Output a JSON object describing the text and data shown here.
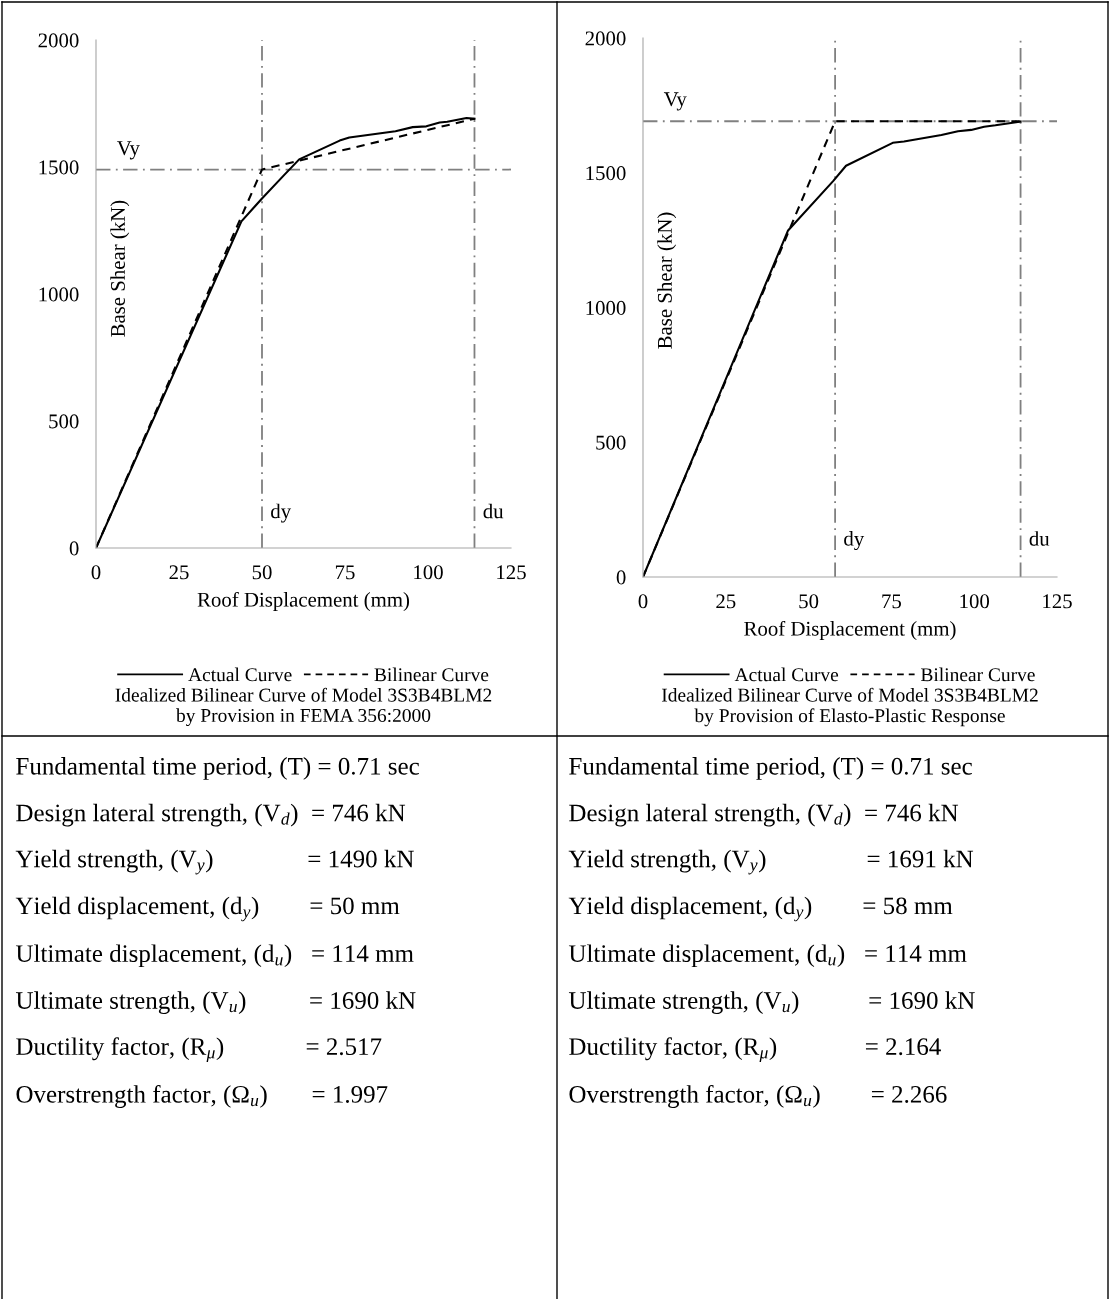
{
  "chart_data": [
    {
      "type": "line",
      "xlabel": "Roof Displacement (mm)",
      "ylabel": "Base Shear (kN)",
      "xlim": [
        0,
        125
      ],
      "ylim": [
        0,
        2000
      ],
      "xticks": [
        0,
        25,
        50,
        75,
        100,
        125
      ],
      "yticks": [
        0,
        500,
        1000,
        1500,
        2000
      ],
      "grid": false,
      "legend": "bottom",
      "series": [
        {
          "name": "Actual Curve",
          "color": "#000000",
          "line_style": "solid",
          "x": [
            0,
            43.8,
            50,
            56.5,
            61.2,
            73.4,
            76.3,
            90.2,
            95.4,
            99.5,
            103.5,
            105.8,
            111.6,
            114
          ],
          "values": [
            0,
            1286,
            1376,
            1466,
            1530,
            1604,
            1616,
            1641,
            1657,
            1660,
            1675,
            1678,
            1693,
            1690
          ]
        },
        {
          "name": "Bilinear Curve",
          "color": "#000000",
          "line_style": "dashed",
          "x": [
            0,
            50,
            114
          ],
          "values": [
            0,
            1490,
            1690
          ]
        }
      ],
      "ref_lines": [
        {
          "axis": "y",
          "value": 1490,
          "label": "Vy",
          "color": "#808080"
        },
        {
          "axis": "x",
          "value": 50,
          "label": "dy",
          "color": "#808080"
        },
        {
          "axis": "x",
          "value": 114,
          "label": "du",
          "color": "#808080"
        }
      ],
      "annotations": [
        "Idealized Bilinear Curve of Model 3S3B4BLM2\nby Provision in FEMA 356:2000"
      ]
    },
    {
      "type": "line",
      "xlabel": "Roof Displacement (mm)",
      "ylabel": "Base Shear (kN)",
      "xlim": [
        0,
        125
      ],
      "ylim": [
        0,
        2000
      ],
      "xticks": [
        0,
        25,
        50,
        75,
        100,
        125
      ],
      "yticks": [
        0,
        500,
        1000,
        1500,
        2000
      ],
      "grid": false,
      "legend": "bottom",
      "series": [
        {
          "name": "Actual Curve",
          "color": "#000000",
          "line_style": "solid",
          "x": [
            0,
            43.8,
            57.4,
            61.3,
            75.4,
            78.8,
            90.1,
            95.1,
            99.1,
            103,
            106.4,
            114
          ],
          "values": [
            0,
            1286,
            1469,
            1526,
            1611,
            1616,
            1640,
            1654,
            1659,
            1671,
            1676,
            1690
          ]
        },
        {
          "name": "Bilinear Curve",
          "color": "#000000",
          "line_style": "dashed",
          "x": [
            0,
            58,
            114
          ],
          "values": [
            0,
            1691,
            1691
          ]
        }
      ],
      "ref_lines": [
        {
          "axis": "y",
          "value": 1691,
          "label": "Vy",
          "color": "#808080"
        },
        {
          "axis": "x",
          "value": 58,
          "label": "dy",
          "color": "#808080"
        },
        {
          "axis": "x",
          "value": 114,
          "label": "du",
          "color": "#808080"
        }
      ],
      "annotations": [
        "Idealized Bilinear Curve of Model 3S3B4BLM2\nby Provision of Elasto-Plastic Response"
      ]
    },
    {
      "type": "other",
      "annotations": [
        "Fundamental time period, (T) = 0.71 sec",
        "Design lateral strength, (V$_{d}$)  = 746 kN",
        "Yield strength, (V$_{y}$)               = 1490 kN",
        "Yield displacement, (d$_{y}$)        = 50 mm",
        "Ultimate displacement, (d$_{u}$)   = 114 mm",
        "Ultimate strength, (V$_{u}$)          = 1690 kN",
        "Ductility factor, (R$_{μ}$)             = 2.517",
        "Overstrength factor, (Ω$_{u}$)       = 1.997"
      ]
    },
    {
      "type": "other",
      "annotations": [
        "Fundamental time period, (T) = 0.71 sec",
        "Design lateral strength, (V$_{d}$)  = 746 kN",
        "Yield strength, (V$_{y}$)                = 1691 kN",
        "Yield displacement, (d$_{y}$)        = 58 mm",
        "Ultimate displacement, (d$_{u}$)   = 114 mm",
        "Ultimate strength, (V$_{u}$)           = 1690 kN",
        "Ductility factor, (R$_{μ}$)              = 2.164",
        "Overstrength factor, (Ω$_{u}$)        = 2.266"
      ]
    }
  ]
}
